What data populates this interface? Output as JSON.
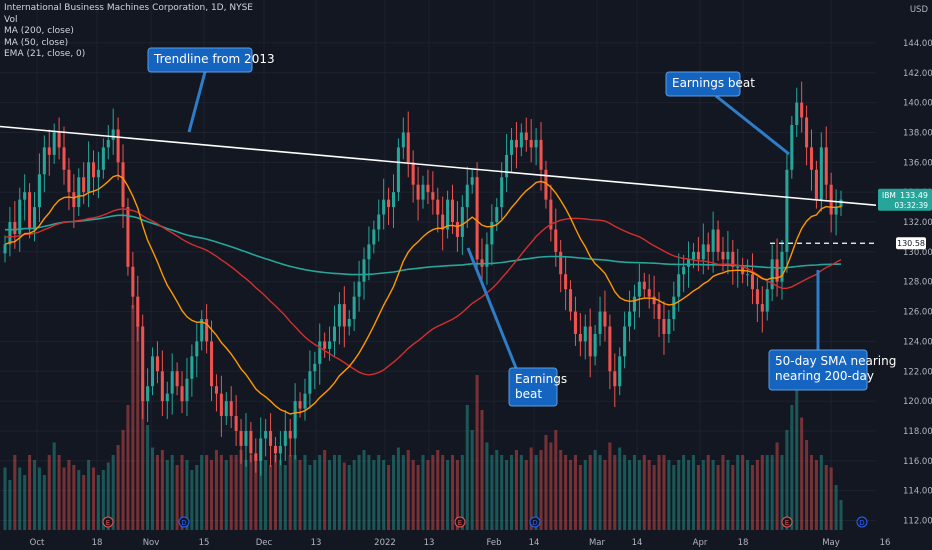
{
  "header": {
    "symbol_line": "International Business Machines Corporation, 1D, NYSE",
    "indicators": [
      "Vol",
      "MA (200, close)",
      "MA (50, close)",
      "EMA (21, close, 0)"
    ],
    "currency": "USD"
  },
  "price_label": {
    "symbol": "IBM",
    "price": "133.49",
    "countdown": "03:32:39",
    "color": "#26a69a"
  },
  "level_label": {
    "price": "130.58"
  },
  "chart_data": {
    "type": "candlestick",
    "title": "International Business Machines Corporation, 1D, NYSE",
    "y_axis": {
      "ticks": [
        112,
        114,
        116,
        118,
        120,
        122,
        124,
        126,
        128,
        130,
        132,
        134,
        136,
        138,
        140,
        142,
        144
      ],
      "range": [
        111.5,
        145.2
      ]
    },
    "x_axis": {
      "ticks": [
        "Oct",
        "18",
        "Nov",
        "15",
        "Dec",
        "13",
        "2022",
        "13",
        "Feb",
        "14",
        "Mar",
        "14",
        "Apr",
        "18",
        "May",
        "16"
      ]
    },
    "colors": {
      "up": "#26a69a",
      "down": "#ef5350",
      "ma200": "#26a69a",
      "ma50": "#d32f2f",
      "ema21": "#ff9800",
      "trendline": "#ffffff"
    },
    "close": [
      130.5,
      132.0,
      131.2,
      133.5,
      134.0,
      131.5,
      133.0,
      135.2,
      137.0,
      136.5,
      138.0,
      137.0,
      135.5,
      134.0,
      133.0,
      135.0,
      134.0,
      136.0,
      135.0,
      135.5,
      137.0,
      137.5,
      138.2,
      136.0,
      133.0,
      129.0,
      127.0,
      125.0,
      120.0,
      121.0,
      123.0,
      122.0,
      120.0,
      120.5,
      122.0,
      121.0,
      120.0,
      121.5,
      123.0,
      124.0,
      125.5,
      124.0,
      121.0,
      120.5,
      119.0,
      120.0,
      119.0,
      118.0,
      117.0,
      118.0,
      116.5,
      116.0,
      117.5,
      118.0,
      117.0,
      116.5,
      117.0,
      118.0,
      117.5,
      120.0,
      119.5,
      120.5,
      122.0,
      122.5,
      124.0,
      123.5,
      124.0,
      125.0,
      126.5,
      125.0,
      125.5,
      127.0,
      128.0,
      129.5,
      130.5,
      131.5,
      132.5,
      133.5,
      133.0,
      134.0,
      137.0,
      138.0,
      136.0,
      134.5,
      133.5,
      134.5,
      134.0,
      133.5,
      132.5,
      131.5,
      133.5,
      132.0,
      131.0,
      133.0,
      134.5,
      135.0,
      129.5,
      129.0,
      130.5,
      132.0,
      133.0,
      135.0,
      136.5,
      137.5,
      137.0,
      138.0,
      137.5,
      137.0,
      137.5,
      135.5,
      133.5,
      131.5,
      130.0,
      128.5,
      127.5,
      126.0,
      124.5,
      124.0,
      125.0,
      123.0,
      124.5,
      126.0,
      125.0,
      122.0,
      121.0,
      123.0,
      125.0,
      126.0,
      127.0,
      128.0,
      127.5,
      127.0,
      126.5,
      125.5,
      124.5,
      125.5,
      127.0,
      128.5,
      129.0,
      129.5,
      130.0,
      129.5,
      130.5,
      130.0,
      131.5,
      130.0,
      129.5,
      130.0,
      129.0,
      129.0,
      128.5,
      128.5,
      127.5,
      126.5,
      126.0,
      127.5,
      129.5,
      128.0,
      130.0,
      135.5,
      138.5,
      140.0,
      139.0,
      137.0,
      135.5,
      133.5,
      137.0,
      134.5,
      132.5,
      133.0,
      133.5
    ],
    "volume_rel": [
      0.25,
      0.2,
      0.3,
      0.25,
      0.22,
      0.3,
      0.28,
      0.25,
      0.22,
      0.3,
      0.35,
      0.3,
      0.25,
      0.28,
      0.26,
      0.24,
      0.22,
      0.28,
      0.25,
      0.22,
      0.24,
      0.27,
      0.3,
      0.34,
      0.4,
      0.5,
      0.9,
      0.82,
      0.6,
      0.42,
      0.33,
      0.3,
      0.32,
      0.28,
      0.3,
      0.26,
      0.3,
      0.28,
      0.24,
      0.26,
      0.3,
      0.3,
      0.28,
      0.32,
      0.3,
      0.28,
      0.3,
      0.3,
      0.32,
      0.28,
      0.3,
      0.28,
      0.3,
      0.28,
      0.26,
      0.3,
      0.28,
      0.26,
      0.3,
      0.3,
      0.28,
      0.3,
      0.26,
      0.28,
      0.3,
      0.32,
      0.28,
      0.3,
      0.3,
      0.27,
      0.26,
      0.28,
      0.3,
      0.32,
      0.3,
      0.28,
      0.3,
      0.28,
      0.26,
      0.3,
      0.33,
      0.3,
      0.32,
      0.28,
      0.26,
      0.3,
      0.28,
      0.3,
      0.32,
      0.3,
      0.28,
      0.3,
      0.28,
      0.3,
      0.5,
      0.4,
      0.62,
      0.48,
      0.35,
      0.3,
      0.32,
      0.3,
      0.28,
      0.3,
      0.32,
      0.3,
      0.28,
      0.33,
      0.3,
      0.32,
      0.38,
      0.35,
      0.4,
      0.32,
      0.3,
      0.28,
      0.3,
      0.26,
      0.28,
      0.3,
      0.32,
      0.3,
      0.28,
      0.35,
      0.3,
      0.33,
      0.3,
      0.28,
      0.3,
      0.28,
      0.3,
      0.28,
      0.26,
      0.3,
      0.3,
      0.28,
      0.26,
      0.28,
      0.3,
      0.28,
      0.3,
      0.26,
      0.28,
      0.3,
      0.28,
      0.26,
      0.3,
      0.28,
      0.26,
      0.3,
      0.3,
      0.28,
      0.26,
      0.28,
      0.3,
      0.3,
      0.3,
      0.35,
      0.3,
      0.4,
      0.5,
      0.63,
      0.45,
      0.36,
      0.3,
      0.28,
      0.3,
      0.26,
      0.25,
      0.18,
      0.12
    ]
  },
  "annotations": [
    {
      "text": "Trendline from 2013"
    },
    {
      "text": "Earnings beat"
    },
    {
      "text": "Earnings beat"
    },
    {
      "text": "50-day SMA nearing nearing 200-day"
    }
  ]
}
